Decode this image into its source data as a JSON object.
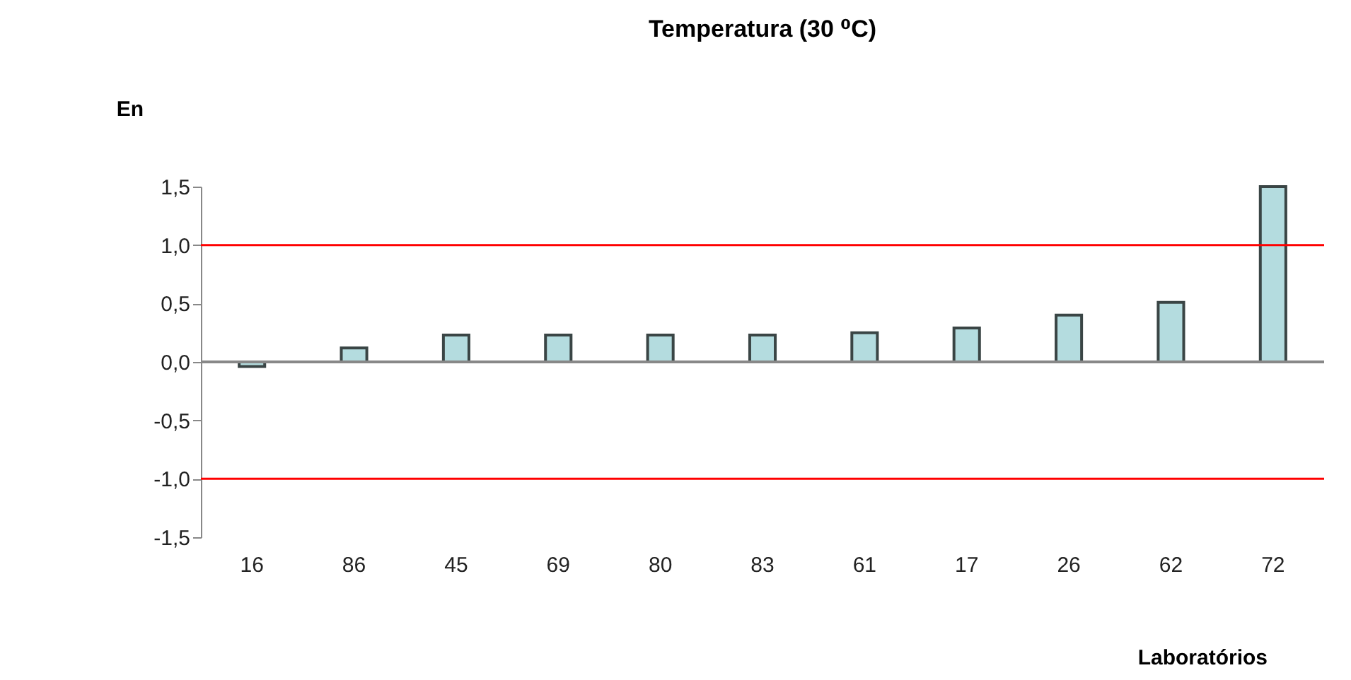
{
  "chart_data": {
    "type": "bar",
    "title": "Temperatura (30 ⁰C)",
    "xlabel": "Laboratórios",
    "ylabel": "En",
    "categories": [
      "16",
      "86",
      "45",
      "69",
      "80",
      "83",
      "61",
      "17",
      "26",
      "62",
      "72"
    ],
    "values": [
      -0.04,
      0.12,
      0.23,
      0.23,
      0.23,
      0.23,
      0.25,
      0.29,
      0.4,
      0.51,
      1.5
    ],
    "color": "#b4dcdf",
    "ylim": [
      -1.5,
      1.5
    ],
    "yticks": [
      {
        "value": -1.5,
        "label": "-1,5"
      },
      {
        "value": -1,
        "label": "-1,0"
      },
      {
        "value": -0.5,
        "label": "-0,5"
      },
      {
        "value": 0,
        "label": "0,0"
      },
      {
        "value": 0.5,
        "label": "0,5"
      },
      {
        "value": 1,
        "label": "1,0"
      },
      {
        "value": 1.5,
        "label": "1,5"
      }
    ],
    "ref_lines": [
      {
        "axis": "y",
        "value": 1,
        "color": "#ff0000"
      },
      {
        "axis": "y",
        "value": -1,
        "color": "#ff0000"
      }
    ],
    "grid": false
  }
}
